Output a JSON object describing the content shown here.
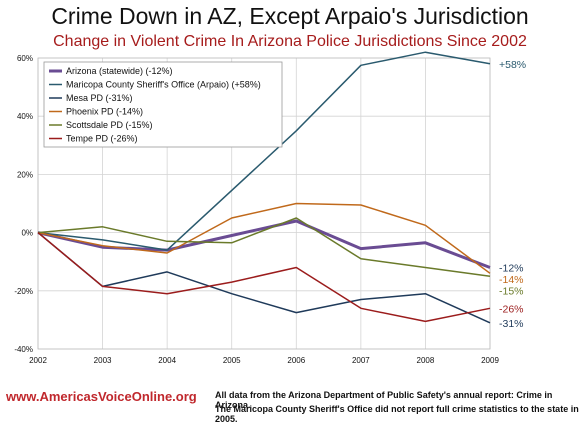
{
  "header": {
    "title": "Crime Down in AZ, Except Arpaio's Jurisdiction",
    "subtitle": "Change in Violent Crime In Arizona Police Jurisdictions Since 2002"
  },
  "footer": {
    "url": "www.AmericasVoiceOnline.org",
    "note_line_1": "All data from the Arizona Department of Public Safety's annual report: Crime in Arizona.",
    "note_line_2": "The Maricopa County Sheriff's Office did not report full crime statistics to the state in 2005."
  },
  "chart_data": {
    "type": "line",
    "title": "Crime Down in AZ, Except Arpaio's Jurisdiction",
    "subtitle": "Change in Violent Crime In Arizona Police Jurisdictions Since 2002",
    "x": [
      2002,
      2003,
      2004,
      2005,
      2006,
      2007,
      2008,
      2009
    ],
    "x_tick_labels": [
      "2002",
      "2003",
      "2004",
      "2005",
      "2006",
      "2007",
      "2008",
      "2009"
    ],
    "ylim": [
      -40,
      60
    ],
    "y_ticks": [
      -40,
      -20,
      0,
      20,
      40,
      60
    ],
    "y_tick_labels": [
      "-40%",
      "-20%",
      "0%",
      "20%",
      "40%",
      "60%"
    ],
    "grid": true,
    "legend_position": "top-left",
    "series": [
      {
        "name": "Arizona (statewide) (-12%)",
        "color": "#6a4c93",
        "width": 3,
        "values": [
          0,
          -5,
          -6,
          -1,
          4,
          -5.5,
          -3.5,
          -12
        ],
        "end_label": ""
      },
      {
        "name": "Maricopa County Sheriff's Office (Arpaio) (+58%)",
        "color": "#2a5a6e",
        "width": 1.5,
        "values": [
          0,
          -2.5,
          -6,
          null,
          35,
          57.5,
          62,
          58
        ],
        "end_label": "+58%",
        "connect_gaps": true
      },
      {
        "name": "Mesa PD (-31%)",
        "color": "#1f3a5a",
        "width": 1.5,
        "values": [
          0,
          -18.5,
          -13.5,
          -21,
          -27.5,
          -23,
          -21,
          -31
        ],
        "end_label": "-31%"
      },
      {
        "name": "Phoenix PD (-14%)",
        "color": "#c0691b",
        "width": 1.5,
        "values": [
          0,
          -4.5,
          -7,
          5,
          10,
          9.5,
          2.5,
          -14
        ],
        "end_label": "-14%"
      },
      {
        "name": "Scottsdale PD (-15%)",
        "color": "#6a7a2a",
        "width": 1.5,
        "values": [
          0,
          2,
          -3,
          -3.5,
          5,
          -9,
          -12,
          -15
        ],
        "end_label": "-15%"
      },
      {
        "name": "Tempe PD (-26%)",
        "color": "#9b1c1c",
        "width": 1.5,
        "values": [
          0,
          -18.5,
          -21,
          -17,
          -12,
          -26,
          -30.5,
          -26
        ],
        "end_label": "-26%"
      }
    ],
    "extra_annotations": [
      {
        "text": "-12%",
        "color": "#1f3a5a",
        "series_index": 0
      }
    ]
  }
}
